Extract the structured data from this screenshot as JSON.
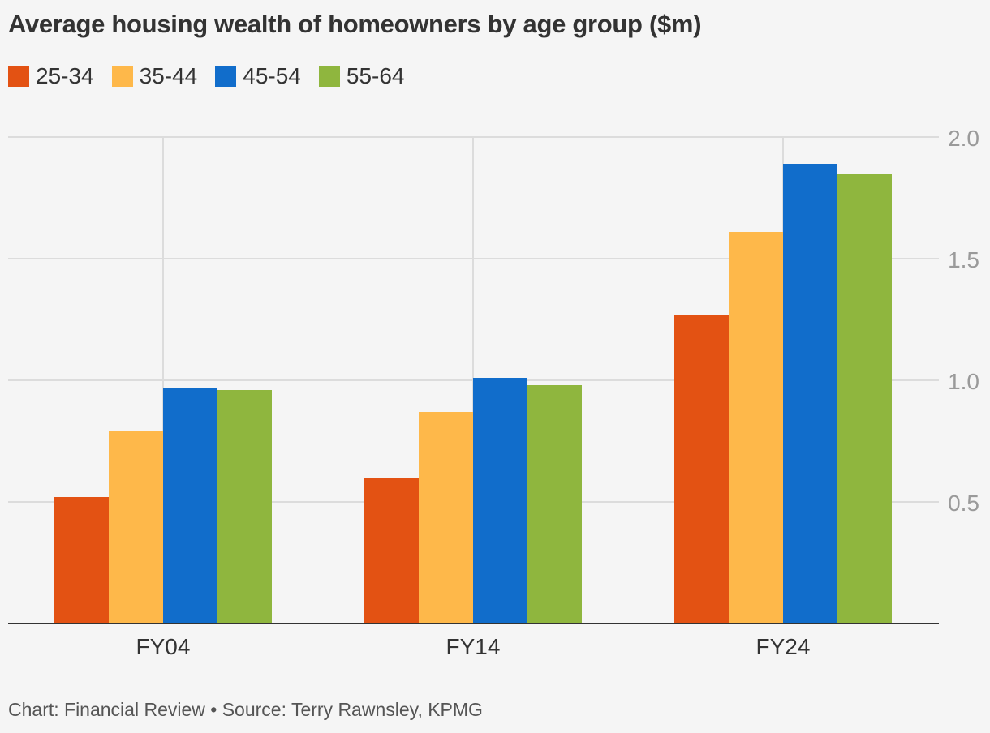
{
  "chart_data": {
    "type": "bar",
    "title": "Average housing wealth of homeowners by age group ($m)",
    "categories": [
      "FY04",
      "FY14",
      "FY24"
    ],
    "series": [
      {
        "name": "25-34",
        "color": "#e35213",
        "values": [
          0.52,
          0.6,
          1.27
        ]
      },
      {
        "name": "35-44",
        "color": "#feb84a",
        "values": [
          0.79,
          0.87,
          1.61
        ]
      },
      {
        "name": "45-54",
        "color": "#116dcb",
        "values": [
          0.97,
          1.01,
          1.89
        ]
      },
      {
        "name": "55-64",
        "color": "#8fb63e",
        "values": [
          0.96,
          0.98,
          1.85
        ]
      }
    ],
    "ylim": [
      0,
      2.0
    ],
    "yticks": [
      "0.5",
      "1.0",
      "1.5",
      "2.0"
    ],
    "ytick_values": [
      0.5,
      1.0,
      1.5,
      2.0
    ],
    "yaxis_position": "right",
    "grid": true,
    "legend_position": "top-left"
  },
  "footer": {
    "text": "Chart: Financial Review • Source: Terry Rawnsley, KPMG"
  }
}
